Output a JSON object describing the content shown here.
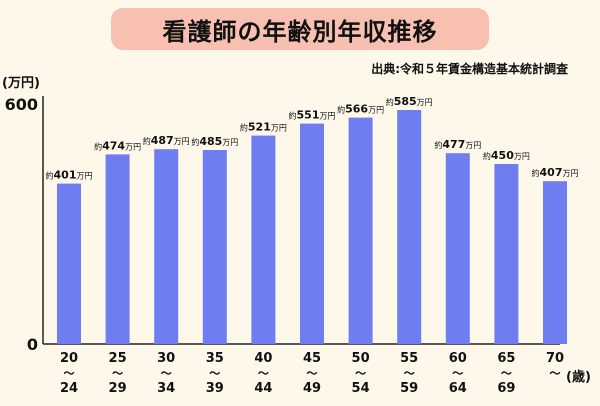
{
  "title": "看護師の年齢別年収推移",
  "source": "出典:令和５年賃金構造基本統計調査",
  "colors": {
    "bar": "#6e7ef0",
    "title_bg": "#f7c0b0",
    "background": "#fdf8ea"
  },
  "chart_data": {
    "type": "bar",
    "title": "看護師の年齢別年収推移",
    "ylabel": "(万円)",
    "xlabel": "(歳)",
    "ylim": [
      0,
      600
    ],
    "yticks": [
      "0",
      "600"
    ],
    "grid": false,
    "categories": [
      {
        "top": "20",
        "sep": "〜",
        "bottom": "24"
      },
      {
        "top": "25",
        "sep": "〜",
        "bottom": "29"
      },
      {
        "top": "30",
        "sep": "〜",
        "bottom": "34"
      },
      {
        "top": "35",
        "sep": "〜",
        "bottom": "39"
      },
      {
        "top": "40",
        "sep": "〜",
        "bottom": "44"
      },
      {
        "top": "45",
        "sep": "〜",
        "bottom": "49"
      },
      {
        "top": "50",
        "sep": "〜",
        "bottom": "54"
      },
      {
        "top": "55",
        "sep": "〜",
        "bottom": "59"
      },
      {
        "top": "60",
        "sep": "〜",
        "bottom": "64"
      },
      {
        "top": "65",
        "sep": "〜",
        "bottom": "69"
      },
      {
        "top": "70",
        "sep": "〜",
        "bottom": ""
      }
    ],
    "values": [
      401,
      474,
      487,
      485,
      521,
      551,
      566,
      585,
      477,
      450,
      407
    ],
    "data_label_prefix": "約",
    "data_label_suffix": "万円"
  }
}
